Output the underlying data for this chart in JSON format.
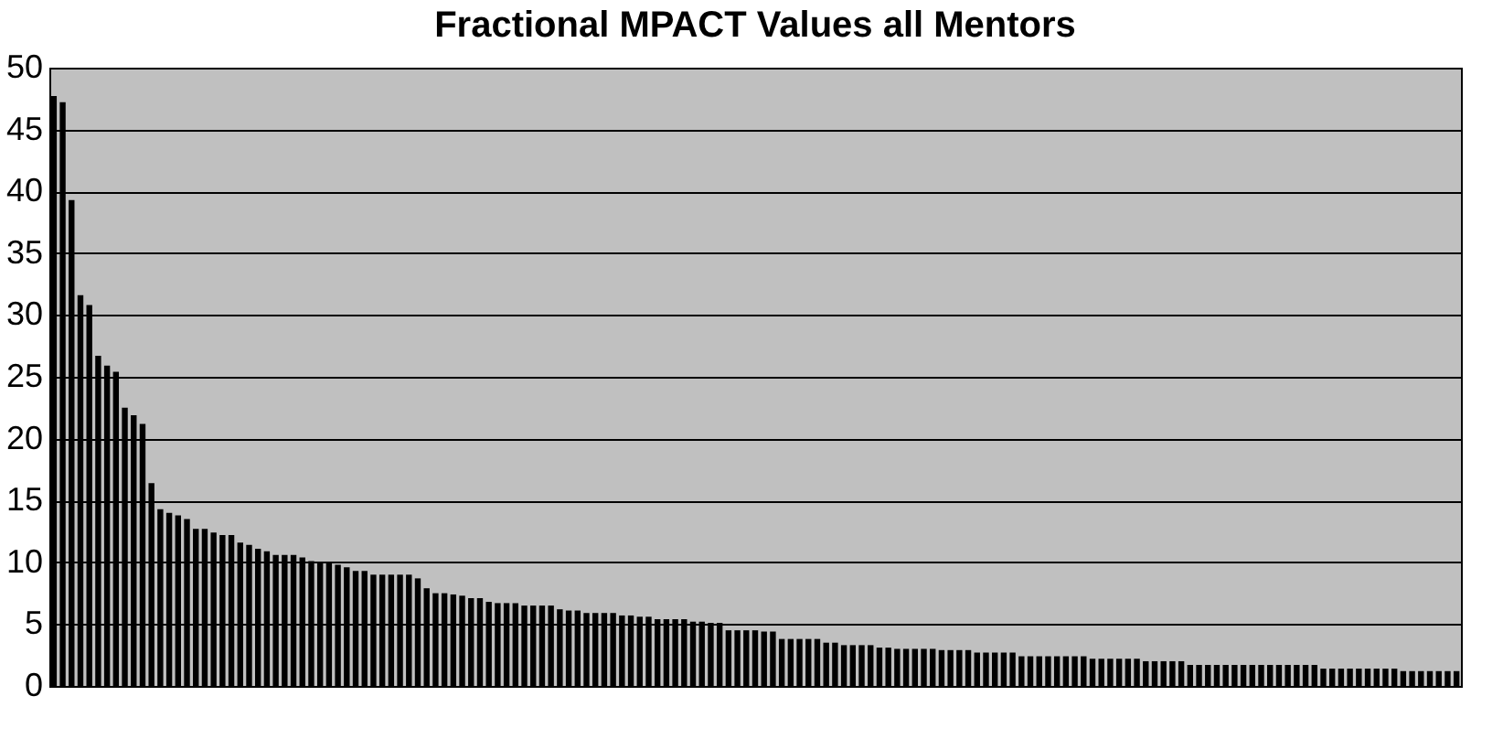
{
  "chart_data": {
    "type": "bar",
    "title": "Fractional MPACT Values all Mentors",
    "categories": [
      null,
      null,
      null,
      null,
      null,
      null,
      null,
      null,
      null,
      null,
      null,
      null,
      null,
      null,
      null,
      null,
      null,
      null,
      null,
      null,
      null,
      null,
      null,
      null,
      null,
      null,
      null,
      null,
      null,
      null,
      null,
      null,
      null,
      null,
      null,
      null,
      null,
      null,
      null,
      null,
      null,
      null,
      null,
      null,
      null,
      null,
      null,
      null,
      null,
      null,
      null,
      null,
      null,
      null,
      null,
      null,
      null,
      null,
      null,
      null,
      null,
      null,
      null,
      null,
      null,
      null,
      null,
      null,
      null,
      null,
      null,
      null,
      null,
      null,
      null,
      null,
      null,
      null,
      null,
      null,
      null,
      null,
      null,
      null,
      null,
      null,
      null,
      null,
      null,
      null,
      null,
      null,
      null,
      null,
      null,
      null,
      null,
      null,
      null,
      null,
      null,
      null,
      null,
      null,
      null,
      null,
      null,
      null,
      null,
      null,
      null,
      null,
      null,
      null,
      null,
      null,
      null,
      null,
      null,
      null,
      null,
      null,
      null,
      null,
      null,
      null,
      null,
      null,
      null,
      null,
      null,
      null,
      null,
      null,
      null,
      null,
      null,
      null,
      null,
      null,
      null,
      null,
      null,
      null,
      null,
      null,
      null,
      null,
      null,
      null,
      null,
      null,
      null,
      null,
      null,
      null,
      null,
      null,
      null
    ],
    "values": [
      47.7,
      47.2,
      39.3,
      31.6,
      30.8,
      26.7,
      25.9,
      25.4,
      22.5,
      21.9,
      21.2,
      16.4,
      14.3,
      14.0,
      13.8,
      13.5,
      12.7,
      12.7,
      12.4,
      12.2,
      12.2,
      11.6,
      11.4,
      11.1,
      10.9,
      10.6,
      10.6,
      10.6,
      10.4,
      10.1,
      10.0,
      10.0,
      9.8,
      9.6,
      9.3,
      9.3,
      9.0,
      9.0,
      9.0,
      9.0,
      9.0,
      8.7,
      7.9,
      7.5,
      7.5,
      7.4,
      7.3,
      7.1,
      7.1,
      6.8,
      6.7,
      6.7,
      6.7,
      6.5,
      6.5,
      6.5,
      6.5,
      6.2,
      6.1,
      6.1,
      5.9,
      5.9,
      5.9,
      5.9,
      5.7,
      5.7,
      5.6,
      5.6,
      5.4,
      5.4,
      5.4,
      5.4,
      5.2,
      5.2,
      5.1,
      5.1,
      4.5,
      4.5,
      4.5,
      4.5,
      4.4,
      4.4,
      3.8,
      3.8,
      3.8,
      3.8,
      3.8,
      3.5,
      3.5,
      3.3,
      3.3,
      3.3,
      3.3,
      3.1,
      3.1,
      3.0,
      3.0,
      3.0,
      3.0,
      3.0,
      2.9,
      2.9,
      2.9,
      2.9,
      2.7,
      2.7,
      2.7,
      2.7,
      2.7,
      2.4,
      2.4,
      2.4,
      2.4,
      2.4,
      2.4,
      2.4,
      2.4,
      2.2,
      2.2,
      2.2,
      2.2,
      2.2,
      2.2,
      2.0,
      2.0,
      2.0,
      2.0,
      2.0,
      1.7,
      1.7,
      1.7,
      1.7,
      1.7,
      1.7,
      1.7,
      1.7,
      1.7,
      1.7,
      1.7,
      1.7,
      1.7,
      1.7,
      1.7,
      1.4,
      1.4,
      1.4,
      1.4,
      1.4,
      1.4,
      1.4,
      1.4,
      1.4,
      1.2,
      1.2,
      1.2,
      1.2,
      1.2,
      1.2,
      1.2
    ],
    "color": "#000000",
    "ylim": [
      0,
      50
    ],
    "yticks": [
      0,
      5,
      10,
      15,
      20,
      25,
      30,
      35,
      40,
      45,
      50
    ],
    "grid": "y",
    "tick_labels": "y"
  }
}
